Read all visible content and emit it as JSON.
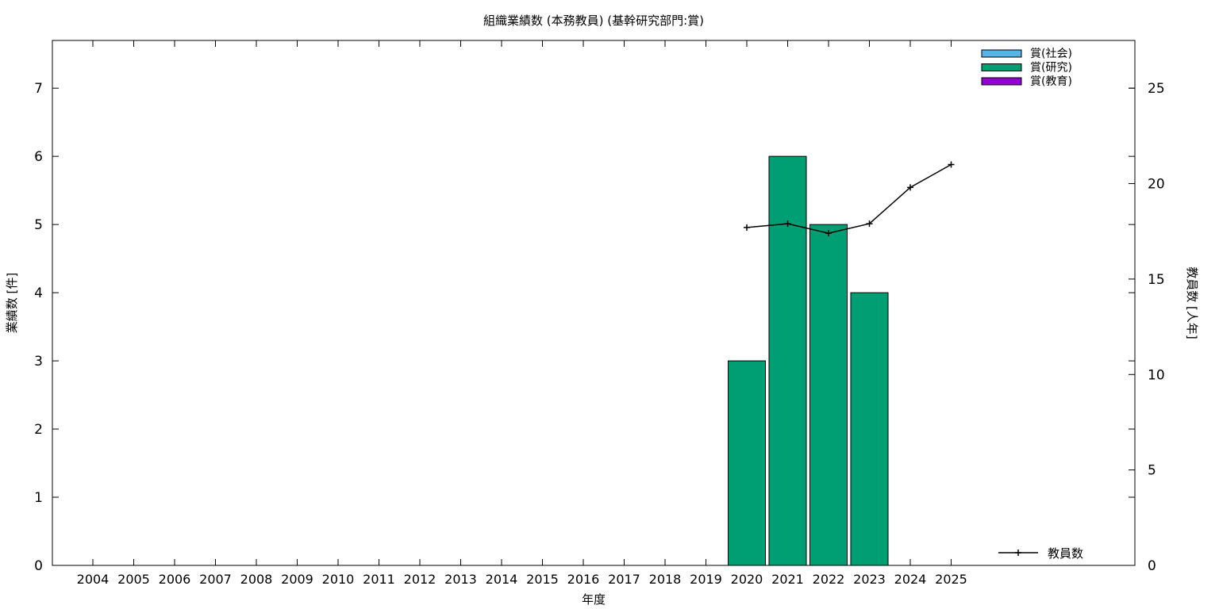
{
  "chart_data": {
    "type": "bar",
    "title": "組織業績数 (本務教員) (基幹研究部門:賞)",
    "xlabel": "年度",
    "ylabel": "業績数 [件]",
    "y2label": "教員数 [人年]",
    "categories": [
      "2004",
      "2005",
      "2006",
      "2007",
      "2008",
      "2009",
      "2010",
      "2011",
      "2012",
      "2013",
      "2014",
      "2015",
      "2016",
      "2017",
      "2018",
      "2019",
      "2020",
      "2021",
      "2022",
      "2023",
      "2024",
      "2025"
    ],
    "ylim": [
      0,
      7.7
    ],
    "yticks": [
      0,
      1,
      2,
      3,
      4,
      5,
      6,
      7
    ],
    "y2lim": [
      0,
      27.5
    ],
    "y2ticks": [
      0,
      5,
      10,
      15,
      20,
      25
    ],
    "stacked": true,
    "series": [
      {
        "name": "賞(社会)",
        "color": "#56b4e9",
        "values": [
          0,
          0,
          0,
          0,
          0,
          0,
          0,
          0,
          0,
          0,
          0,
          0,
          0,
          0,
          0,
          0,
          0,
          0,
          0,
          0,
          0,
          0
        ]
      },
      {
        "name": "賞(研究)",
        "color": "#009e73",
        "values": [
          0,
          0,
          0,
          0,
          0,
          0,
          0,
          0,
          0,
          0,
          0,
          0,
          0,
          0,
          0,
          0,
          3,
          6,
          5,
          4,
          0,
          0
        ]
      },
      {
        "name": "賞(教育)",
        "color": "#9400d3",
        "values": [
          0,
          0,
          0,
          0,
          0,
          0,
          0,
          0,
          0,
          0,
          0,
          0,
          0,
          0,
          0,
          0,
          0,
          0,
          0,
          0,
          0,
          0
        ]
      }
    ],
    "line_series": {
      "name": "教員数",
      "color": "#000000",
      "axis": "y2",
      "x": [
        "2020",
        "2021",
        "2022",
        "2023",
        "2024",
        "2025"
      ],
      "values": [
        17.7,
        17.9,
        17.4,
        17.9,
        19.8,
        21.0
      ]
    },
    "grid": false,
    "legend_position": "top-right"
  }
}
